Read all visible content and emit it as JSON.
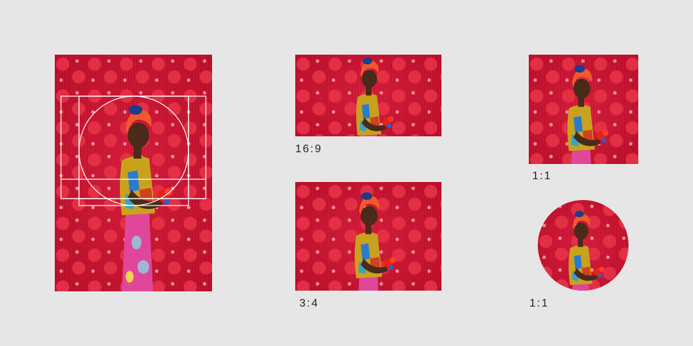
{
  "crops": [
    {
      "ratio_label": "16:9"
    },
    {
      "ratio_label": "3:4"
    },
    {
      "ratio_label": "1:1"
    },
    {
      "ratio_label": "1:1"
    }
  ],
  "colors": {
    "background": "#e6e6e6",
    "backdrop_red": "#c8102e",
    "headwrap": "#f05a2a",
    "shirt": "#c9a21d",
    "skirt": "#e0469a",
    "skin": "#4a2a1a",
    "guide_lines": "#ffffff"
  },
  "icons": [
    "crop-guide-overlay"
  ]
}
